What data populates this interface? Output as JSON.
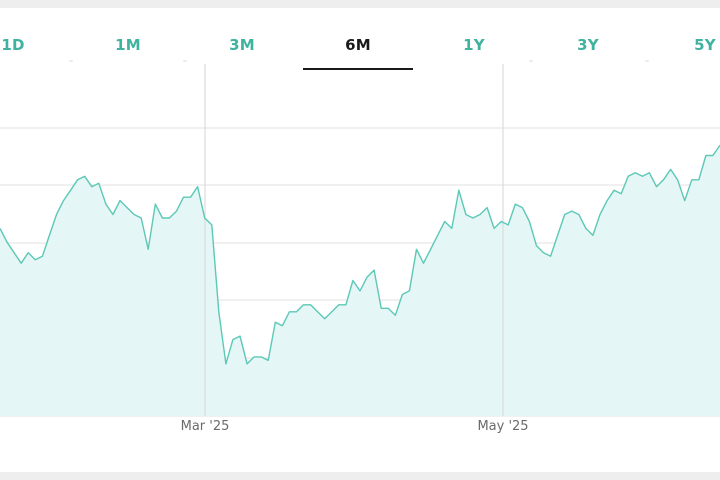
{
  "tabs": [
    {
      "label": "1D",
      "active": false
    },
    {
      "label": "1M",
      "active": false
    },
    {
      "label": "3M",
      "active": false
    },
    {
      "label": "6M",
      "active": true
    },
    {
      "label": "1Y",
      "active": false
    },
    {
      "label": "3Y",
      "active": false
    },
    {
      "label": "5Y",
      "active": false
    }
  ],
  "colors": {
    "line": "#5cc8b6",
    "fill": "#e5f6f7",
    "active_tab": "#1a1a1a",
    "inactive_tab": "#3fb2a0",
    "grid": "#e2e2e2"
  },
  "chart_data": {
    "type": "area",
    "title": "",
    "xlabel": "",
    "ylabel": "",
    "x_tick_labels": [
      "Mar '25",
      "May '25"
    ],
    "y_tick_labels": [],
    "grid": true,
    "legend": "none",
    "series": [
      {
        "values": [
          54,
          50,
          47,
          44,
          47,
          45,
          46,
          52,
          58,
          62,
          65,
          68,
          69,
          66,
          67,
          61,
          58,
          62,
          60,
          58,
          57,
          48,
          61,
          57,
          57,
          59,
          63,
          63,
          66,
          57,
          55,
          30,
          15,
          22,
          23,
          15,
          17,
          17,
          16,
          27,
          26,
          30,
          30,
          32,
          32,
          30,
          28,
          30,
          32,
          32,
          39,
          36,
          40,
          42,
          31,
          31,
          29,
          35,
          36,
          48,
          44,
          48,
          52,
          56,
          54,
          65,
          58,
          57,
          58,
          60,
          54,
          56,
          55,
          61,
          60,
          56,
          49,
          47,
          46,
          52,
          58,
          59,
          58,
          54,
          52,
          58,
          62,
          65,
          64,
          69,
          70,
          69,
          70,
          66,
          68,
          71,
          68,
          62,
          68,
          68,
          75,
          75,
          78
        ],
        "min": 0,
        "max": 95
      }
    ]
  }
}
